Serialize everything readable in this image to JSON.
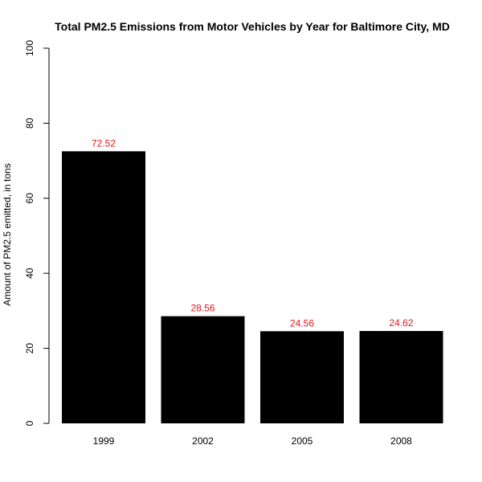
{
  "chart_data": {
    "type": "bar",
    "title": "Total PM2.5 Emissions from Motor Vehicles by Year for Baltimore City, MD",
    "xlabel": "",
    "ylabel": "Amount of PM2.5 emitted, in tons",
    "categories": [
      "1999",
      "2002",
      "2005",
      "2008"
    ],
    "values": [
      72.52,
      28.56,
      24.56,
      24.62
    ],
    "data_labels": [
      "72.52",
      "28.56",
      "24.56",
      "24.62"
    ],
    "ylim": [
      0,
      100
    ],
    "yticks": [
      0,
      20,
      40,
      60,
      80,
      100
    ],
    "ytick_labels": [
      "0",
      "20",
      "40",
      "60",
      "80",
      "100"
    ],
    "grid": false,
    "legend": "none",
    "colors": {
      "bar": "#000000",
      "data_label": "#e8141a",
      "background": "#ffffff"
    }
  }
}
